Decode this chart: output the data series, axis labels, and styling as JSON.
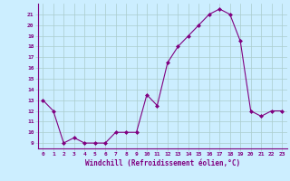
{
  "x": [
    0,
    1,
    2,
    3,
    4,
    5,
    6,
    7,
    8,
    9,
    10,
    11,
    12,
    13,
    14,
    15,
    16,
    17,
    18,
    19,
    20,
    21,
    22,
    23
  ],
  "y": [
    13,
    12,
    9,
    9.5,
    9,
    9,
    9,
    10,
    10,
    10,
    13.5,
    12.5,
    16.5,
    18,
    19,
    20,
    21,
    21.5,
    21,
    18.5,
    12,
    11.5,
    12,
    12
  ],
  "line_color": "#800080",
  "marker": "D",
  "marker_size": 2,
  "bg_color": "#cceeff",
  "grid_color": "#aacccc",
  "xlabel": "Windchill (Refroidissement éolien,°C)",
  "xlabel_color": "#800080",
  "tick_color": "#800080",
  "ylim": [
    8.5,
    22
  ],
  "yticks": [
    9,
    10,
    11,
    12,
    13,
    14,
    15,
    16,
    17,
    18,
    19,
    20,
    21
  ],
  "xlim": [
    -0.5,
    23.5
  ],
  "xticks": [
    0,
    1,
    2,
    3,
    4,
    5,
    6,
    7,
    8,
    9,
    10,
    11,
    12,
    13,
    14,
    15,
    16,
    17,
    18,
    19,
    20,
    21,
    22,
    23
  ]
}
